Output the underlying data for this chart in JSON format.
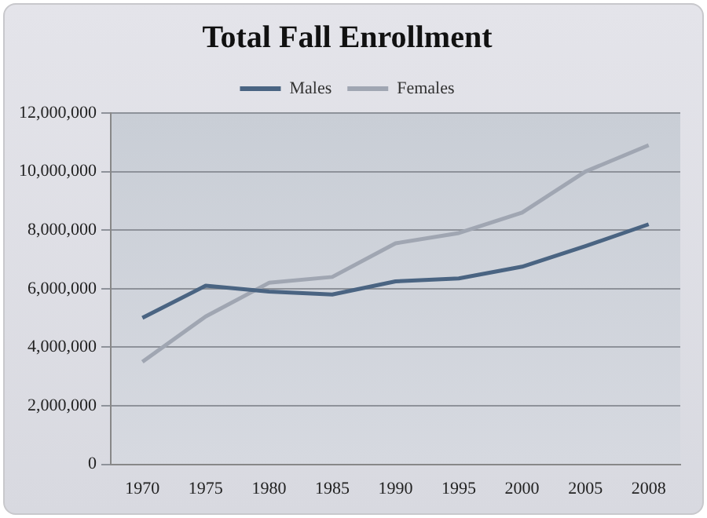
{
  "chart_data": {
    "type": "line",
    "title": "Total Fall Enrollment",
    "categories": [
      "1970",
      "1975",
      "1980",
      "1985",
      "1990",
      "1995",
      "2000",
      "2005",
      "2008"
    ],
    "series": [
      {
        "name": "Males",
        "color": "#4a6482",
        "values": [
          5000000,
          6100000,
          5900000,
          5800000,
          6250000,
          6350000,
          6750000,
          7450000,
          8200000
        ]
      },
      {
        "name": "Females",
        "color": "#a0a6b2",
        "values": [
          3500000,
          5050000,
          6200000,
          6400000,
          7550000,
          7900000,
          8600000,
          10000000,
          10900000
        ]
      }
    ],
    "ylim": [
      0,
      12000000
    ],
    "yticks": [
      0,
      {
        "value": 2000000,
        "label": "2,000,000"
      },
      {
        "value": 4000000,
        "label": "4,000,000"
      },
      {
        "value": 6000000,
        "label": "6,000,000"
      },
      {
        "value": 8000000,
        "label": "8,000,000"
      },
      {
        "value": 10000000,
        "label": "10,000,000"
      },
      {
        "value": 12000000,
        "label": "12,000,000"
      }
    ],
    "grid": "y",
    "legend": "top",
    "marker": "none",
    "line_style": "solid"
  }
}
